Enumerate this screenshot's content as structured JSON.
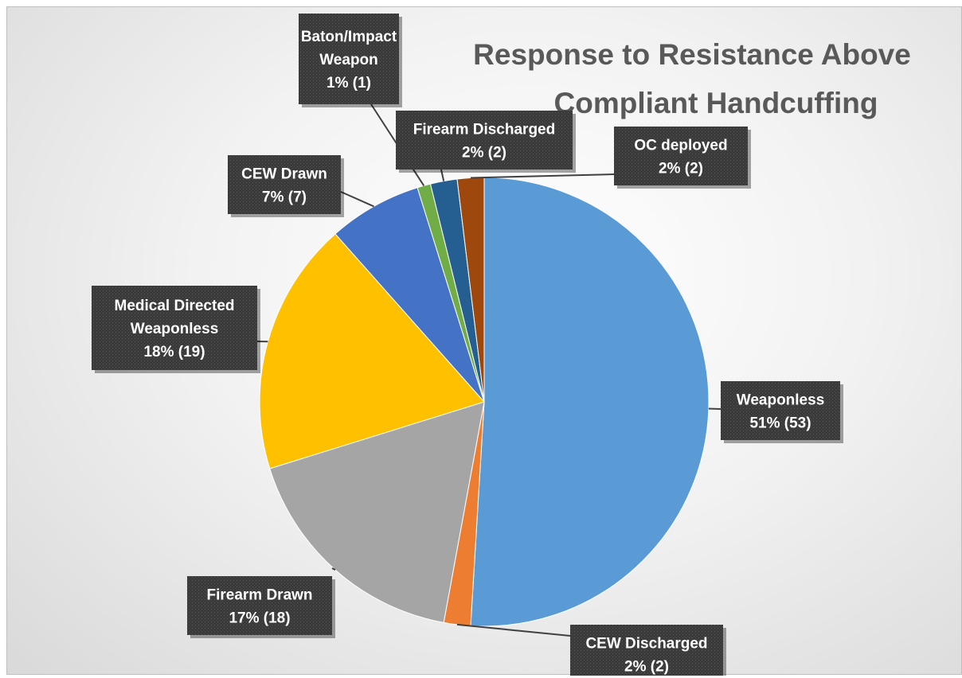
{
  "chart_data": {
    "type": "pie",
    "title_lines": [
      "Response to Resistance Above",
      "Compliant Handcuffing"
    ],
    "slices": [
      {
        "label_lines": [
          "Weaponless",
          "51% (53)"
        ],
        "name": "Weaponless",
        "value": 53,
        "percent": 51,
        "color": "#5b9bd5"
      },
      {
        "label_lines": [
          "CEW Discharged",
          "2% (2)"
        ],
        "name": "CEW Discharged",
        "value": 2,
        "percent": 2,
        "color": "#ed7d31"
      },
      {
        "label_lines": [
          "Firearm Drawn",
          "17% (18)"
        ],
        "name": "Firearm Drawn",
        "value": 18,
        "percent": 17,
        "color": "#a5a5a5"
      },
      {
        "label_lines": [
          "Medical Directed",
          "Weaponless",
          "18% (19)"
        ],
        "name": "Medical Directed Weaponless",
        "value": 19,
        "percent": 18,
        "color": "#ffc000"
      },
      {
        "label_lines": [
          "CEW Drawn",
          "7% (7)"
        ],
        "name": "CEW Drawn",
        "value": 7,
        "percent": 7,
        "color": "#4472c4"
      },
      {
        "label_lines": [
          "Baton/Impact",
          "Weapon",
          "1% (1)"
        ],
        "name": "Baton/Impact Weapon",
        "value": 1,
        "percent": 1,
        "color": "#70ad47"
      },
      {
        "label_lines": [
          "Firearm Discharged",
          "2% (2)"
        ],
        "name": "Firearm Discharged",
        "value": 2,
        "percent": 2,
        "color": "#255e91"
      },
      {
        "label_lines": [
          "OC deployed",
          "2% (2)"
        ],
        "name": "OC deployed",
        "value": 2,
        "percent": 2,
        "color": "#9e480e"
      }
    ],
    "legend": "none",
    "data_labels": "callouts"
  }
}
